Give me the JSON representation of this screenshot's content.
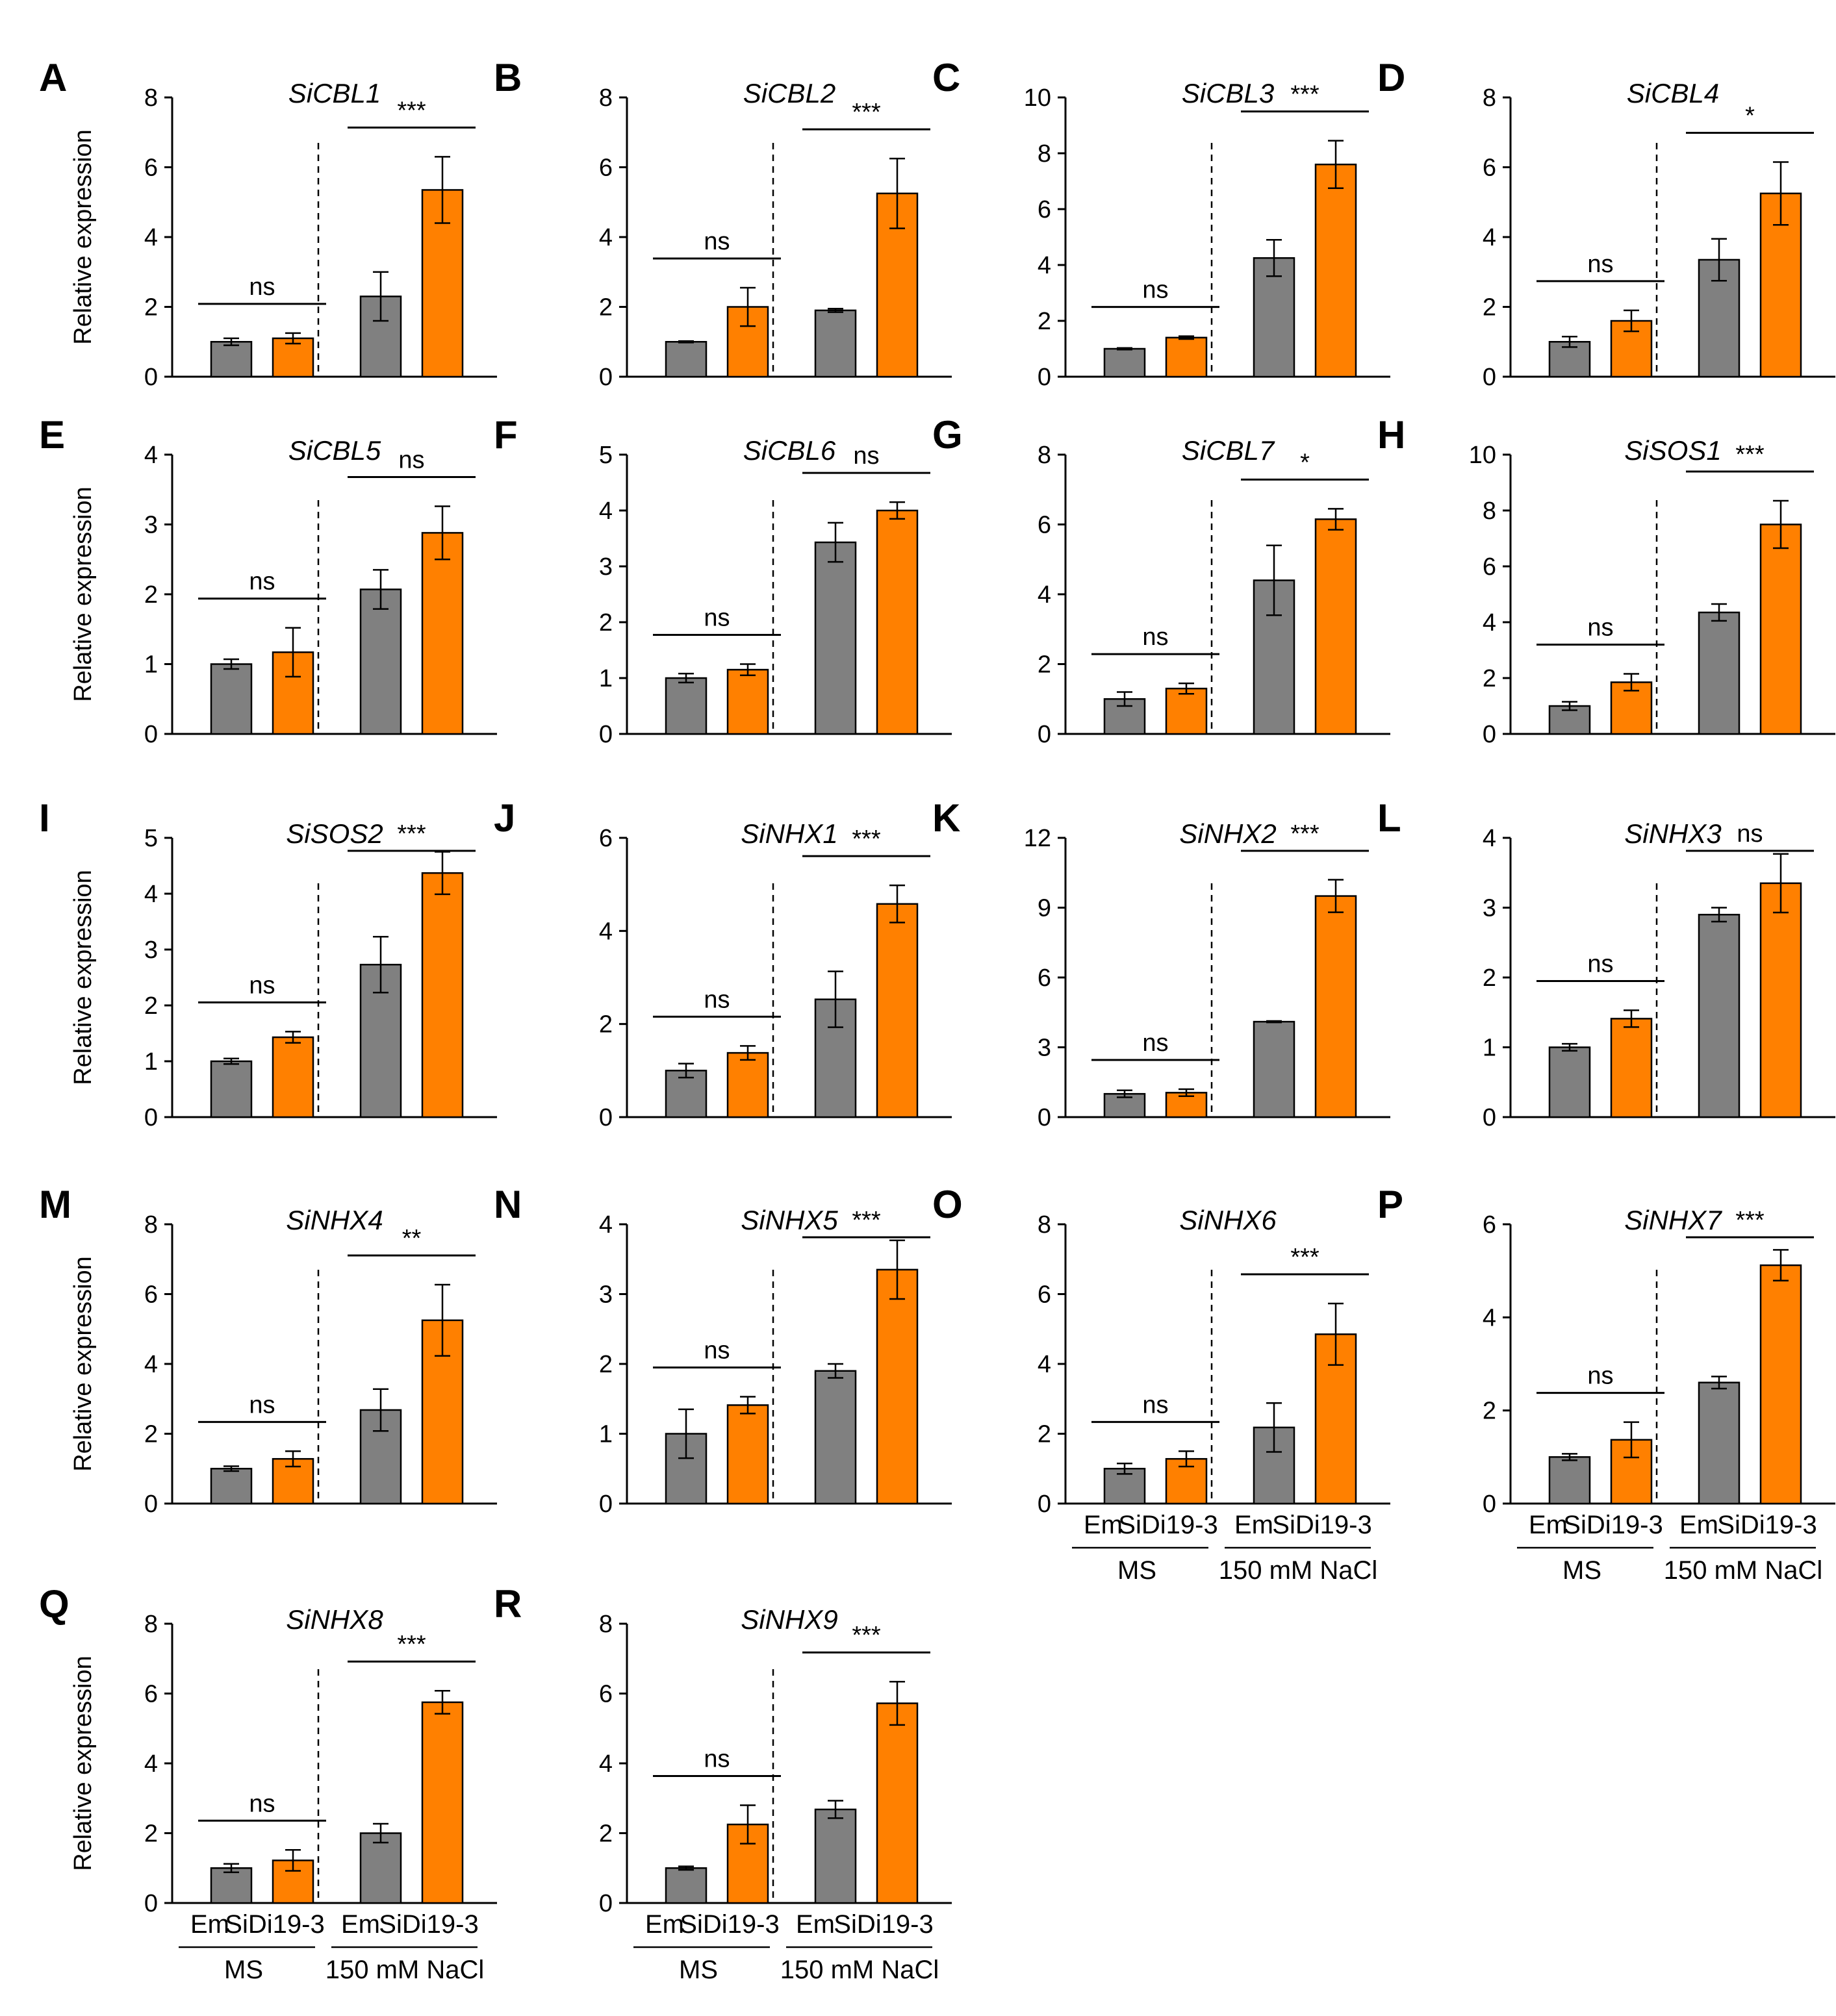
{
  "figure": {
    "ylabel": "Relative expression",
    "categories": [
      "Em",
      "SiDi19-3",
      "Em",
      "SiDi19-3"
    ],
    "groups": [
      "MS",
      "150 mM NaCl"
    ],
    "colors": {
      "em": "#808080",
      "sidi": "#FF8000",
      "axis": "#000000"
    }
  },
  "chart_data": [
    {
      "panel": "A",
      "title": "SiCBL1",
      "type": "bar",
      "ylim": [
        0,
        8
      ],
      "ticks": [
        0,
        2,
        4,
        6,
        8
      ],
      "ylabel": "Relative expression",
      "categories": [
        "Em",
        "SiDi19-3",
        "Em",
        "SiDi19-3"
      ],
      "groups": [
        "MS",
        "150 mM NaCl"
      ],
      "values": [
        1.0,
        1.1,
        2.3,
        5.35
      ],
      "errors": [
        0.1,
        0.15,
        0.7,
        0.95
      ],
      "significance": [
        "ns",
        "***"
      ]
    },
    {
      "panel": "B",
      "title": "SiCBL2",
      "type": "bar",
      "ylim": [
        0,
        8
      ],
      "ticks": [
        0,
        2,
        4,
        6,
        8
      ],
      "categories": [
        "Em",
        "SiDi19-3",
        "Em",
        "SiDi19-3"
      ],
      "groups": [
        "MS",
        "150 mM NaCl"
      ],
      "values": [
        1.0,
        2.0,
        1.9,
        5.25
      ],
      "errors": [
        0.02,
        0.55,
        0.05,
        1.0
      ],
      "significance": [
        "ns",
        "***"
      ]
    },
    {
      "panel": "C",
      "title": "SiCBL3",
      "type": "bar",
      "ylim": [
        0,
        10
      ],
      "ticks": [
        0,
        2,
        4,
        6,
        8,
        10
      ],
      "categories": [
        "Em",
        "SiDi19-3",
        "Em",
        "SiDi19-3"
      ],
      "groups": [
        "MS",
        "150 mM NaCl"
      ],
      "values": [
        1.0,
        1.4,
        4.25,
        7.6
      ],
      "errors": [
        0.03,
        0.05,
        0.65,
        0.85
      ],
      "significance": [
        "ns",
        "***"
      ]
    },
    {
      "panel": "D",
      "title": "SiCBL4",
      "type": "bar",
      "ylim": [
        0,
        8
      ],
      "ticks": [
        0,
        2,
        4,
        6,
        8
      ],
      "categories": [
        "Em",
        "SiDi19-3",
        "Em",
        "SiDi19-3"
      ],
      "groups": [
        "MS",
        "150 mM NaCl"
      ],
      "values": [
        1.0,
        1.6,
        3.35,
        5.25
      ],
      "errors": [
        0.15,
        0.3,
        0.6,
        0.9
      ],
      "significance": [
        "ns",
        "*"
      ]
    },
    {
      "panel": "E",
      "title": "SiCBL5",
      "type": "bar",
      "ylim": [
        0,
        4
      ],
      "ticks": [
        0,
        1,
        2,
        3,
        4
      ],
      "ylabel": "Relative expression",
      "categories": [
        "Em",
        "SiDi19-3",
        "Em",
        "SiDi19-3"
      ],
      "groups": [
        "MS",
        "150 mM NaCl"
      ],
      "values": [
        1.0,
        1.17,
        2.07,
        2.88
      ],
      "errors": [
        0.07,
        0.35,
        0.28,
        0.38
      ],
      "significance": [
        "ns",
        "ns"
      ]
    },
    {
      "panel": "F",
      "title": "SiCBL6",
      "type": "bar",
      "ylim": [
        0,
        5
      ],
      "ticks": [
        0,
        1,
        2,
        3,
        4,
        5
      ],
      "categories": [
        "Em",
        "SiDi19-3",
        "Em",
        "SiDi19-3"
      ],
      "groups": [
        "MS",
        "150 mM NaCl"
      ],
      "values": [
        1.0,
        1.15,
        3.43,
        4.0
      ],
      "errors": [
        0.08,
        0.1,
        0.35,
        0.15
      ],
      "significance": [
        "ns",
        "ns"
      ]
    },
    {
      "panel": "G",
      "title": "SiCBL7",
      "type": "bar",
      "ylim": [
        0,
        8
      ],
      "ticks": [
        0,
        2,
        4,
        6,
        8
      ],
      "categories": [
        "Em",
        "SiDi19-3",
        "Em",
        "SiDi19-3"
      ],
      "groups": [
        "MS",
        "150 mM NaCl"
      ],
      "values": [
        1.0,
        1.3,
        4.4,
        6.15
      ],
      "errors": [
        0.2,
        0.15,
        1.0,
        0.3
      ],
      "significance": [
        "ns",
        "*"
      ]
    },
    {
      "panel": "H",
      "title": "SiSOS1",
      "type": "bar",
      "ylim": [
        0,
        10
      ],
      "ticks": [
        0,
        2,
        4,
        6,
        8,
        10
      ],
      "categories": [
        "Em",
        "SiDi19-3",
        "Em",
        "SiDi19-3"
      ],
      "groups": [
        "MS",
        "150 mM NaCl"
      ],
      "values": [
        1.0,
        1.85,
        4.35,
        7.5
      ],
      "errors": [
        0.15,
        0.3,
        0.3,
        0.85
      ],
      "significance": [
        "ns",
        "***"
      ]
    },
    {
      "panel": "I",
      "title": "SiSOS2",
      "type": "bar",
      "ylim": [
        0,
        5
      ],
      "ticks": [
        0,
        1,
        2,
        3,
        4,
        5
      ],
      "ylabel": "Relative expression",
      "categories": [
        "Em",
        "SiDi19-3",
        "Em",
        "SiDi19-3"
      ],
      "groups": [
        "MS",
        "150 mM NaCl"
      ],
      "values": [
        1.0,
        1.43,
        2.73,
        4.37
      ],
      "errors": [
        0.05,
        0.1,
        0.5,
        0.38
      ],
      "significance": [
        "ns",
        "***"
      ]
    },
    {
      "panel": "J",
      "title": "SiNHX1",
      "type": "bar",
      "ylim": [
        0,
        6
      ],
      "ticks": [
        0,
        2,
        4,
        6
      ],
      "categories": [
        "Em",
        "SiDi19-3",
        "Em",
        "SiDi19-3"
      ],
      "groups": [
        "MS",
        "150 mM NaCl"
      ],
      "values": [
        1.0,
        1.38,
        2.53,
        4.58
      ],
      "errors": [
        0.15,
        0.15,
        0.6,
        0.4
      ],
      "significance": [
        "ns",
        "***"
      ]
    },
    {
      "panel": "K",
      "title": "SiNHX2",
      "type": "bar",
      "ylim": [
        0,
        12
      ],
      "ticks": [
        0,
        3,
        6,
        9,
        12
      ],
      "categories": [
        "Em",
        "SiDi19-3",
        "Em",
        "SiDi19-3"
      ],
      "groups": [
        "MS",
        "150 mM NaCl"
      ],
      "values": [
        1.0,
        1.05,
        4.1,
        9.5
      ],
      "errors": [
        0.15,
        0.15,
        0.03,
        0.7
      ],
      "significance": [
        "ns",
        "***"
      ]
    },
    {
      "panel": "L",
      "title": "SiNHX3",
      "type": "bar",
      "ylim": [
        0,
        4
      ],
      "ticks": [
        0,
        1,
        2,
        3,
        4
      ],
      "categories": [
        "Em",
        "SiDi19-3",
        "Em",
        "SiDi19-3"
      ],
      "groups": [
        "MS",
        "150 mM NaCl"
      ],
      "values": [
        1.0,
        1.41,
        2.9,
        3.35
      ],
      "errors": [
        0.05,
        0.12,
        0.1,
        0.42
      ],
      "significance": [
        "ns",
        "ns"
      ]
    },
    {
      "panel": "M",
      "title": "SiNHX4",
      "type": "bar",
      "ylim": [
        0,
        8
      ],
      "ticks": [
        0,
        2,
        4,
        6,
        8
      ],
      "ylabel": "Relative expression",
      "categories": [
        "Em",
        "SiDi19-3",
        "Em",
        "SiDi19-3"
      ],
      "groups": [
        "MS",
        "150 mM NaCl"
      ],
      "values": [
        1.0,
        1.28,
        2.68,
        5.25
      ],
      "errors": [
        0.07,
        0.22,
        0.6,
        1.02
      ],
      "significance": [
        "ns",
        "**"
      ]
    },
    {
      "panel": "N",
      "title": "SiNHX5",
      "type": "bar",
      "ylim": [
        0,
        4
      ],
      "ticks": [
        0,
        1,
        2,
        3,
        4
      ],
      "categories": [
        "Em",
        "SiDi19-3",
        "Em",
        "SiDi19-3"
      ],
      "groups": [
        "MS",
        "150 mM NaCl"
      ],
      "values": [
        1.0,
        1.41,
        1.9,
        3.35
      ],
      "errors": [
        0.35,
        0.12,
        0.1,
        0.42
      ],
      "significance": [
        "ns",
        "***"
      ]
    },
    {
      "panel": "O",
      "title": "SiNHX6",
      "type": "bar",
      "ylim": [
        0,
        8
      ],
      "ticks": [
        0,
        2,
        4,
        6,
        8
      ],
      "categories": [
        "Em",
        "SiDi19-3",
        "Em",
        "SiDi19-3"
      ],
      "groups": [
        "MS",
        "150 mM NaCl"
      ],
      "values": [
        1.0,
        1.28,
        2.18,
        4.85
      ],
      "errors": [
        0.15,
        0.22,
        0.7,
        0.88
      ],
      "significance": [
        "ns",
        "***"
      ]
    },
    {
      "panel": "P",
      "title": "SiNHX7",
      "type": "bar",
      "ylim": [
        0,
        6
      ],
      "ticks": [
        0,
        2,
        4,
        6
      ],
      "categories": [
        "Em",
        "SiDi19-3",
        "Em",
        "SiDi19-3"
      ],
      "groups": [
        "MS",
        "150 mM NaCl"
      ],
      "values": [
        1.0,
        1.37,
        2.6,
        5.12
      ],
      "errors": [
        0.07,
        0.38,
        0.13,
        0.33
      ],
      "significance": [
        "ns",
        "***"
      ]
    },
    {
      "panel": "Q",
      "title": "SiNHX8",
      "type": "bar",
      "ylim": [
        0,
        8
      ],
      "ticks": [
        0,
        2,
        4,
        6,
        8
      ],
      "ylabel": "Relative expression",
      "categories": [
        "Em",
        "SiDi19-3",
        "Em",
        "SiDi19-3"
      ],
      "groups": [
        "MS",
        "150 mM NaCl"
      ],
      "values": [
        1.0,
        1.22,
        2.0,
        5.75
      ],
      "errors": [
        0.12,
        0.3,
        0.27,
        0.33
      ],
      "significance": [
        "ns",
        "***"
      ]
    },
    {
      "panel": "R",
      "title": "SiNHX9",
      "type": "bar",
      "ylim": [
        0,
        8
      ],
      "ticks": [
        0,
        2,
        4,
        6,
        8
      ],
      "categories": [
        "Em",
        "SiDi19-3",
        "Em",
        "SiDi19-3"
      ],
      "groups": [
        "MS",
        "150 mM NaCl"
      ],
      "values": [
        1.0,
        2.25,
        2.68,
        5.72
      ],
      "errors": [
        0.05,
        0.55,
        0.25,
        0.62
      ],
      "significance": [
        "ns",
        "***"
      ]
    }
  ]
}
